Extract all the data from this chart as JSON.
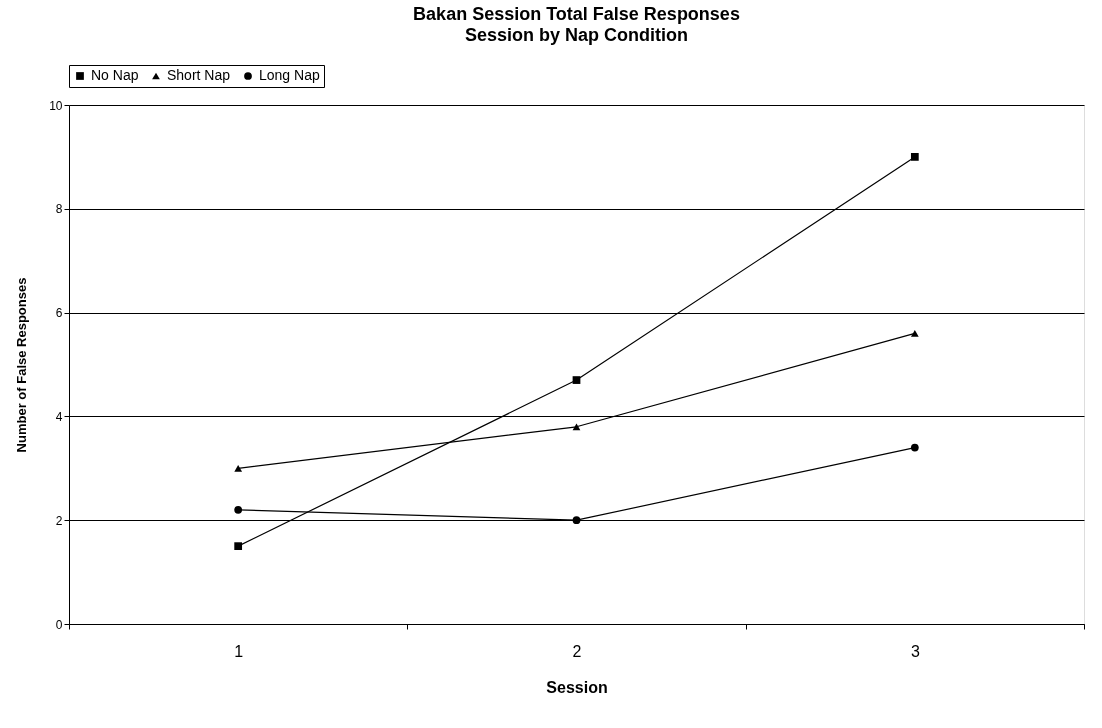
{
  "chart_data": {
    "type": "line",
    "title": "Bakan Session Total False Responses",
    "subtitle": "Session by Nap Condition",
    "xlabel": "Session",
    "ylabel": "Number of False Responses",
    "categories": [
      "1",
      "2",
      "3"
    ],
    "series": [
      {
        "name": "No Nap",
        "color": "#000000",
        "marker": "square",
        "values": [
          1.5,
          4.7,
          9.0
        ]
      },
      {
        "name": "Short Nap",
        "color": "#000000",
        "marker": "triangle",
        "values": [
          3.0,
          3.8,
          5.6
        ]
      },
      {
        "name": "Long Nap",
        "color": "#000000",
        "marker": "circle",
        "values": [
          2.2,
          2.0,
          3.4
        ]
      }
    ],
    "ylim": [
      0,
      10
    ],
    "yticks": [
      0,
      2,
      4,
      6,
      8,
      10
    ],
    "grid": "y",
    "legend": "top",
    "line_style": "solid"
  }
}
